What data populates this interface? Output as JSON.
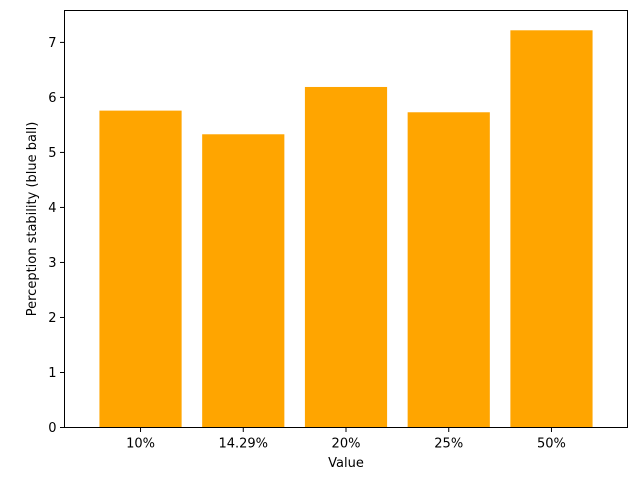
{
  "chart_data": {
    "type": "bar",
    "categories": [
      "10%",
      "14.29%",
      "20%",
      "25%",
      "50%"
    ],
    "values": [
      5.76,
      5.33,
      6.19,
      5.73,
      7.22
    ],
    "title": "",
    "xlabel": "Value",
    "ylabel": "Perception stability (blue ball)",
    "ylim": [
      0,
      7.58
    ],
    "yticks": [
      0,
      1,
      2,
      3,
      4,
      5,
      6,
      7
    ],
    "grid": false,
    "legend": "none",
    "colors": {
      "bar": "#ffa500",
      "axis": "#000000",
      "background": "#ffffff"
    }
  }
}
